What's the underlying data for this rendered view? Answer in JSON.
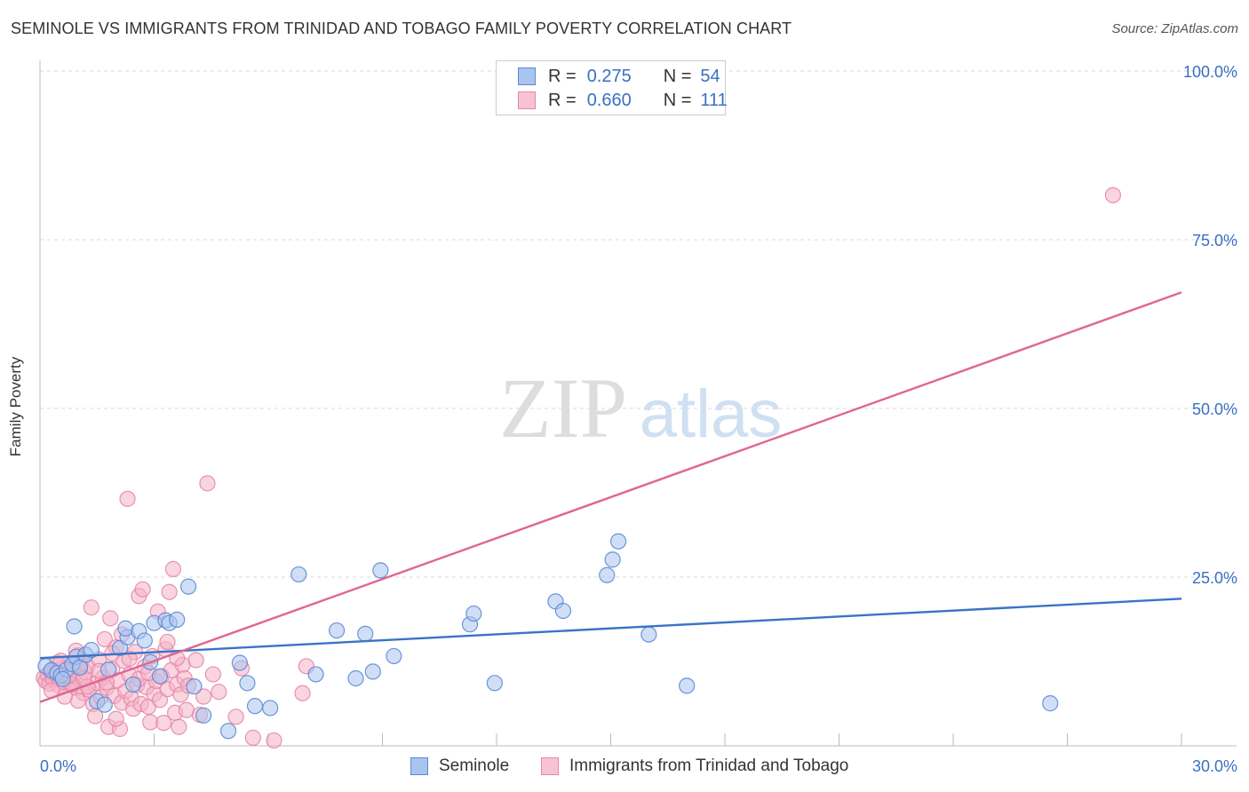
{
  "title": "SEMINOLE VS IMMIGRANTS FROM TRINIDAD AND TOBAGO FAMILY POVERTY CORRELATION CHART",
  "source": "Source: ZipAtlas.com",
  "watermark": {
    "zip": "ZIP",
    "atlas": "atlas"
  },
  "legend_top": [
    {
      "r_label": "R =",
      "r_value": "0.275",
      "n_label": "N =",
      "n_value": "54"
    },
    {
      "r_label": "R =",
      "r_value": "0.660",
      "n_label": "N =",
      "n_value": "111"
    }
  ],
  "legend_bottom": [
    "Seminole",
    "Immigrants from Trinidad and Tobago"
  ],
  "colors": {
    "blue": "#3a73c8",
    "blue_fill": "#a9c4ee",
    "pink": "#e0668f",
    "pink_fill": "#f4b3c6",
    "tick_label": "#3a6fc4",
    "grid": "#d9d9d9"
  },
  "chart_data": {
    "type": "scatter",
    "title": "SEMINOLE VS IMMIGRANTS FROM TRINIDAD AND TOBAGO FAMILY POVERTY CORRELATION CHART",
    "xlabel": "",
    "ylabel": "Family Poverty",
    "xlim": [
      0,
      30
    ],
    "ylim": [
      0,
      100
    ],
    "x_tick_labels": [
      "0.0%",
      "30.0%"
    ],
    "y_ticks": [
      25,
      50,
      75,
      100
    ],
    "y_tick_labels": [
      "25.0%",
      "50.0%",
      "75.0%",
      "100.0%"
    ],
    "grid": true,
    "series": [
      {
        "name": "Seminole",
        "r": 0.275,
        "n": 54,
        "trend": {
          "x": [
            0,
            30
          ],
          "y": [
            13.0,
            21.8
          ]
        },
        "points": [
          [
            0.15,
            11.8
          ],
          [
            0.3,
            11.2
          ],
          [
            0.45,
            10.8
          ],
          [
            0.55,
            10.4
          ],
          [
            0.7,
            11.3
          ],
          [
            0.85,
            12.1
          ],
          [
            0.95,
            13.2
          ],
          [
            1.05,
            11.6
          ],
          [
            1.2,
            13.5
          ],
          [
            1.35,
            14.2
          ],
          [
            0.9,
            17.7
          ],
          [
            1.5,
            6.6
          ],
          [
            1.7,
            6.1
          ],
          [
            1.8,
            11.3
          ],
          [
            2.1,
            14.5
          ],
          [
            2.3,
            16.1
          ],
          [
            2.25,
            17.4
          ],
          [
            2.45,
            9.1
          ],
          [
            2.6,
            17.0
          ],
          [
            2.75,
            15.6
          ],
          [
            2.9,
            12.4
          ],
          [
            3.0,
            18.2
          ],
          [
            3.15,
            10.3
          ],
          [
            3.3,
            18.6
          ],
          [
            3.4,
            18.2
          ],
          [
            3.6,
            18.7
          ],
          [
            3.9,
            23.6
          ],
          [
            4.05,
            8.8
          ],
          [
            4.3,
            4.5
          ],
          [
            4.95,
            2.2
          ],
          [
            5.25,
            12.3
          ],
          [
            5.45,
            9.3
          ],
          [
            5.65,
            5.9
          ],
          [
            6.05,
            5.6
          ],
          [
            6.8,
            25.4
          ],
          [
            7.25,
            10.6
          ],
          [
            7.8,
            17.1
          ],
          [
            8.3,
            10.0
          ],
          [
            8.55,
            16.6
          ],
          [
            8.75,
            11.0
          ],
          [
            8.95,
            26.0
          ],
          [
            9.3,
            13.3
          ],
          [
            11.3,
            18.0
          ],
          [
            11.4,
            19.6
          ],
          [
            11.95,
            9.3
          ],
          [
            13.55,
            21.4
          ],
          [
            13.75,
            20.0
          ],
          [
            14.9,
            25.3
          ],
          [
            15.05,
            27.6
          ],
          [
            15.2,
            30.3
          ],
          [
            16.0,
            16.5
          ],
          [
            17.0,
            8.9
          ],
          [
            26.55,
            6.3
          ],
          [
            0.6,
            9.9
          ]
        ]
      },
      {
        "name": "Immigrants from Trinidad and Tobago",
        "r": 0.66,
        "n": 111,
        "trend": {
          "x": [
            0,
            30
          ],
          "y": [
            6.5,
            67.2
          ]
        },
        "points": [
          [
            0.1,
            10.1
          ],
          [
            0.15,
            9.6
          ],
          [
            0.2,
            10.6
          ],
          [
            0.25,
            9.2
          ],
          [
            0.3,
            10.9
          ],
          [
            0.35,
            9.9
          ],
          [
            0.4,
            11.2
          ],
          [
            0.45,
            10.4
          ],
          [
            0.5,
            8.9
          ],
          [
            0.55,
            10.8
          ],
          [
            0.6,
            11.6
          ],
          [
            0.65,
            9.4
          ],
          [
            0.7,
            10.2
          ],
          [
            0.75,
            12.1
          ],
          [
            0.8,
            9.0
          ],
          [
            0.85,
            11.0
          ],
          [
            0.9,
            10.5
          ],
          [
            0.95,
            8.6
          ],
          [
            1.0,
            13.4
          ],
          [
            1.05,
            9.8
          ],
          [
            1.1,
            12.4
          ],
          [
            1.15,
            7.8
          ],
          [
            1.2,
            10.9
          ],
          [
            1.25,
            11.8
          ],
          [
            1.3,
            8.3
          ],
          [
            1.35,
            20.5
          ],
          [
            1.4,
            6.2
          ],
          [
            1.45,
            4.4
          ],
          [
            1.5,
            9.3
          ],
          [
            1.55,
            12.8
          ],
          [
            1.6,
            7.2
          ],
          [
            1.65,
            10.1
          ],
          [
            1.7,
            15.8
          ],
          [
            1.75,
            8.6
          ],
          [
            1.8,
            2.8
          ],
          [
            1.85,
            18.9
          ],
          [
            1.9,
            11.3
          ],
          [
            1.95,
            7.4
          ],
          [
            2.0,
            14.6
          ],
          [
            2.05,
            9.7
          ],
          [
            2.1,
            2.5
          ],
          [
            2.15,
            6.4
          ],
          [
            2.2,
            12.6
          ],
          [
            2.25,
            8.1
          ],
          [
            2.3,
            36.6
          ],
          [
            2.35,
            10.5
          ],
          [
            2.4,
            7.0
          ],
          [
            2.45,
            5.5
          ],
          [
            2.5,
            13.9
          ],
          [
            2.55,
            9.0
          ],
          [
            2.6,
            22.2
          ],
          [
            2.65,
            6.2
          ],
          [
            2.7,
            23.2
          ],
          [
            2.75,
            11.7
          ],
          [
            2.8,
            8.7
          ],
          [
            2.85,
            5.8
          ],
          [
            2.9,
            3.5
          ],
          [
            2.95,
            13.3
          ],
          [
            3.0,
            7.7
          ],
          [
            3.05,
            9.6
          ],
          [
            3.1,
            19.9
          ],
          [
            3.15,
            6.8
          ],
          [
            3.2,
            10.3
          ],
          [
            3.25,
            3.4
          ],
          [
            3.3,
            14.3
          ],
          [
            3.35,
            8.4
          ],
          [
            3.4,
            22.8
          ],
          [
            3.45,
            11.2
          ],
          [
            3.5,
            26.2
          ],
          [
            3.55,
            4.9
          ],
          [
            3.6,
            9.1
          ],
          [
            3.65,
            2.8
          ],
          [
            3.7,
            7.6
          ],
          [
            3.75,
            12.0
          ],
          [
            3.8,
            10.0
          ],
          [
            3.85,
            5.3
          ],
          [
            3.9,
            8.9
          ],
          [
            4.1,
            12.7
          ],
          [
            4.2,
            4.6
          ],
          [
            4.3,
            7.3
          ],
          [
            4.4,
            38.9
          ],
          [
            4.55,
            10.6
          ],
          [
            4.7,
            8.0
          ],
          [
            5.15,
            4.3
          ],
          [
            5.3,
            11.5
          ],
          [
            5.6,
            1.2
          ],
          [
            6.15,
            0.8
          ],
          [
            6.9,
            7.8
          ],
          [
            7.0,
            11.8
          ],
          [
            1.0,
            6.7
          ],
          [
            1.25,
            8.8
          ],
          [
            0.45,
            12.3
          ],
          [
            0.65,
            7.3
          ],
          [
            0.85,
            9.1
          ],
          [
            1.05,
            11.9
          ],
          [
            2.0,
            4.0
          ],
          [
            2.6,
            9.9
          ],
          [
            3.6,
            13.0
          ],
          [
            0.3,
            8.2
          ],
          [
            0.75,
            10.4
          ],
          [
            1.55,
            11.1
          ],
          [
            1.9,
            13.7
          ],
          [
            2.35,
            12.9
          ],
          [
            2.85,
            10.8
          ],
          [
            3.35,
            15.4
          ],
          [
            0.55,
            12.6
          ],
          [
            1.15,
            10.0
          ],
          [
            1.75,
            9.4
          ],
          [
            28.2,
            81.6
          ],
          [
            0.95,
            14.1
          ],
          [
            2.15,
            16.5
          ]
        ]
      }
    ]
  }
}
